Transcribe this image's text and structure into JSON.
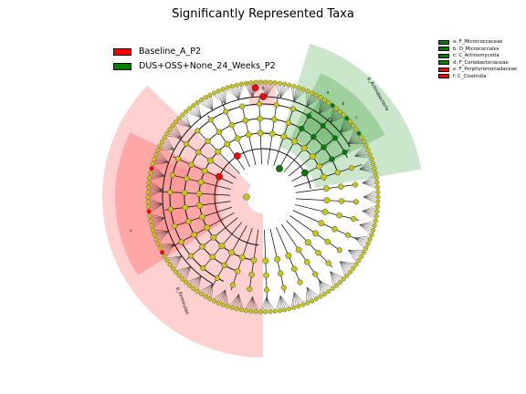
{
  "title": "Significantly Represented Taxa",
  "colors": {
    "enriched_A": "#ff0000",
    "enriched_B": "#008000",
    "node_default": "#c8c814",
    "edge": "#000000"
  },
  "legend_groups": [
    {
      "label": "Baseline_A_P2",
      "color": "#ff0000"
    },
    {
      "label": "DUS+OSS+None_24_Weeks_P2",
      "color": "#008000"
    }
  ],
  "legend_taxa": [
    {
      "label": "a: F_Micrococcaceae",
      "color": "#008000"
    },
    {
      "label": "b: O_Micrococcales",
      "color": "#008000"
    },
    {
      "label": "c: C_Actinomycetia",
      "color": "#008000"
    },
    {
      "label": "d: F_Coriobacteriaceae",
      "color": "#008000"
    },
    {
      "label": "e: F_Porphyromonadaceae",
      "color": "#ff0000"
    },
    {
      "label": "f: C_Clostridia",
      "color": "#ff0000"
    }
  ],
  "clade_labels": {
    "actino": "p_Actinobacteria",
    "firmicutes": "p_Firmicutes",
    "a": "a",
    "b": "b",
    "c": "c",
    "e": "e",
    "f": "f"
  }
}
